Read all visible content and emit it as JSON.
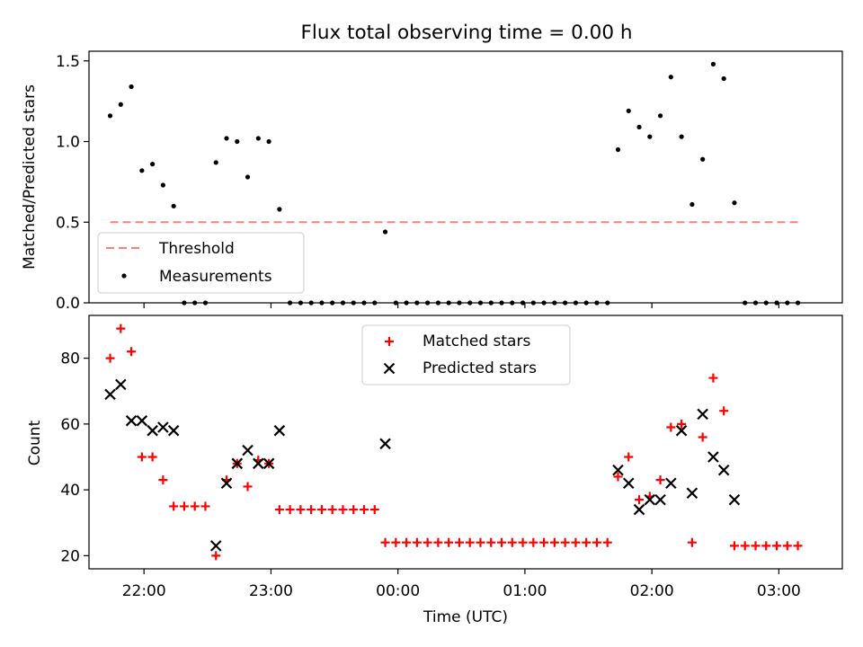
{
  "chart_data": [
    {
      "type": "scatter",
      "title": "Flux total observing time = 0.00 h",
      "ylabel": "Matched/Predicted stars",
      "ylim": [
        0,
        1.56
      ],
      "yticks": [
        "0.0",
        "0.5",
        "1.0",
        "1.5"
      ],
      "grid": false,
      "legend": "lower-left",
      "x_time_range": [
        "21:34",
        "03:30"
      ],
      "threshold": {
        "name": "Threshold",
        "value": 0.5,
        "x_start": "21:44",
        "x_end": "03:09",
        "color": "#ff7f7f",
        "style": "dashed"
      },
      "series": [
        {
          "name": "Measurements",
          "color": "#000000",
          "marker": "dot",
          "points": [
            [
              "21:44",
              1.16
            ],
            [
              "21:49",
              1.23
            ],
            [
              "21:54",
              1.34
            ],
            [
              "21:59",
              0.82
            ],
            [
              "22:04",
              0.86
            ],
            [
              "22:09",
              0.73
            ],
            [
              "22:14",
              0.6
            ],
            [
              "22:19",
              0.0
            ],
            [
              "22:24",
              0.0
            ],
            [
              "22:29",
              0.0
            ],
            [
              "22:34",
              0.87
            ],
            [
              "22:39",
              1.02
            ],
            [
              "22:44",
              1.0
            ],
            [
              "22:49",
              0.78
            ],
            [
              "22:54",
              1.02
            ],
            [
              "22:59",
              1.0
            ],
            [
              "23:04",
              0.58
            ],
            [
              "23:09",
              0.0
            ],
            [
              "23:14",
              0.0
            ],
            [
              "23:19",
              0.0
            ],
            [
              "23:24",
              0.0
            ],
            [
              "23:29",
              0.0
            ],
            [
              "23:34",
              0.0
            ],
            [
              "23:39",
              0.0
            ],
            [
              "23:44",
              0.0
            ],
            [
              "23:49",
              0.0
            ],
            [
              "23:54",
              0.44
            ],
            [
              "23:59",
              0.0
            ],
            [
              "00:04",
              0.0
            ],
            [
              "00:09",
              0.0
            ],
            [
              "00:14",
              0.0
            ],
            [
              "00:19",
              0.0
            ],
            [
              "00:24",
              0.0
            ],
            [
              "00:29",
              0.0
            ],
            [
              "00:34",
              0.0
            ],
            [
              "00:39",
              0.0
            ],
            [
              "00:44",
              0.0
            ],
            [
              "00:49",
              0.0
            ],
            [
              "00:54",
              0.0
            ],
            [
              "00:59",
              0.0
            ],
            [
              "01:04",
              0.0
            ],
            [
              "01:09",
              0.0
            ],
            [
              "01:14",
              0.0
            ],
            [
              "01:19",
              0.0
            ],
            [
              "01:24",
              0.0
            ],
            [
              "01:29",
              0.0
            ],
            [
              "01:34",
              0.0
            ],
            [
              "01:39",
              0.0
            ],
            [
              "01:44",
              0.95
            ],
            [
              "01:49",
              1.19
            ],
            [
              "01:54",
              1.09
            ],
            [
              "01:59",
              1.03
            ],
            [
              "02:04",
              1.16
            ],
            [
              "02:09",
              1.4
            ],
            [
              "02:14",
              1.03
            ],
            [
              "02:19",
              0.61
            ],
            [
              "02:24",
              0.89
            ],
            [
              "02:29",
              1.48
            ],
            [
              "02:34",
              1.39
            ],
            [
              "02:39",
              0.62
            ],
            [
              "02:44",
              0.0
            ],
            [
              "02:49",
              0.0
            ],
            [
              "02:54",
              0.0
            ],
            [
              "02:59",
              0.0
            ],
            [
              "03:04",
              0.0
            ],
            [
              "03:09",
              0.0
            ]
          ]
        }
      ]
    },
    {
      "type": "scatter",
      "xlabel": "Time (UTC)",
      "ylabel": "Count",
      "ylim": [
        16,
        93
      ],
      "yticks": [
        "20",
        "40",
        "60",
        "80"
      ],
      "xticks": [
        "22:00",
        "23:00",
        "00:00",
        "01:00",
        "02:00",
        "03:00"
      ],
      "x_time_range": [
        "21:34",
        "03:30"
      ],
      "grid": false,
      "legend": "top-center",
      "series": [
        {
          "name": "Matched stars",
          "color": "#ff0000",
          "marker": "plus",
          "points": [
            [
              "21:44",
              80
            ],
            [
              "21:49",
              89
            ],
            [
              "21:54",
              82
            ],
            [
              "21:59",
              50
            ],
            [
              "22:04",
              50
            ],
            [
              "22:09",
              43
            ],
            [
              "22:14",
              35
            ],
            [
              "22:19",
              35
            ],
            [
              "22:24",
              35
            ],
            [
              "22:29",
              35
            ],
            [
              "22:34",
              20
            ],
            [
              "22:39",
              43
            ],
            [
              "22:44",
              48
            ],
            [
              "22:49",
              41
            ],
            [
              "22:54",
              49
            ],
            [
              "22:59",
              48
            ],
            [
              "23:04",
              34
            ],
            [
              "23:09",
              34
            ],
            [
              "23:14",
              34
            ],
            [
              "23:19",
              34
            ],
            [
              "23:24",
              34
            ],
            [
              "23:29",
              34
            ],
            [
              "23:34",
              34
            ],
            [
              "23:39",
              34
            ],
            [
              "23:44",
              34
            ],
            [
              "23:49",
              34
            ],
            [
              "23:54",
              24
            ],
            [
              "23:59",
              24
            ],
            [
              "00:04",
              24
            ],
            [
              "00:09",
              24
            ],
            [
              "00:14",
              24
            ],
            [
              "00:19",
              24
            ],
            [
              "00:24",
              24
            ],
            [
              "00:29",
              24
            ],
            [
              "00:34",
              24
            ],
            [
              "00:39",
              24
            ],
            [
              "00:44",
              24
            ],
            [
              "00:49",
              24
            ],
            [
              "00:54",
              24
            ],
            [
              "00:59",
              24
            ],
            [
              "01:04",
              24
            ],
            [
              "01:09",
              24
            ],
            [
              "01:14",
              24
            ],
            [
              "01:19",
              24
            ],
            [
              "01:24",
              24
            ],
            [
              "01:29",
              24
            ],
            [
              "01:34",
              24
            ],
            [
              "01:39",
              24
            ],
            [
              "01:44",
              44
            ],
            [
              "01:49",
              50
            ],
            [
              "01:54",
              37
            ],
            [
              "01:59",
              38
            ],
            [
              "02:04",
              43
            ],
            [
              "02:09",
              59
            ],
            [
              "02:14",
              60
            ],
            [
              "02:19",
              24
            ],
            [
              "02:24",
              56
            ],
            [
              "02:29",
              74
            ],
            [
              "02:34",
              64
            ],
            [
              "02:39",
              23
            ],
            [
              "02:44",
              23
            ],
            [
              "02:49",
              23
            ],
            [
              "02:54",
              23
            ],
            [
              "02:59",
              23
            ],
            [
              "03:04",
              23
            ],
            [
              "03:09",
              23
            ]
          ]
        },
        {
          "name": "Predicted stars",
          "color": "#000000",
          "marker": "x",
          "points": [
            [
              "21:44",
              69
            ],
            [
              "21:49",
              72
            ],
            [
              "21:54",
              61
            ],
            [
              "21:59",
              61
            ],
            [
              "22:04",
              58
            ],
            [
              "22:09",
              59
            ],
            [
              "22:14",
              58
            ],
            [
              "22:34",
              23
            ],
            [
              "22:39",
              42
            ],
            [
              "22:44",
              48
            ],
            [
              "22:49",
              52
            ],
            [
              "22:54",
              48
            ],
            [
              "22:59",
              48
            ],
            [
              "23:04",
              58
            ],
            [
              "23:54",
              54
            ],
            [
              "01:44",
              46
            ],
            [
              "01:49",
              42
            ],
            [
              "01:54",
              34
            ],
            [
              "01:59",
              37
            ],
            [
              "02:04",
              37
            ],
            [
              "02:09",
              42
            ],
            [
              "02:14",
              58
            ],
            [
              "02:19",
              39
            ],
            [
              "02:24",
              63
            ],
            [
              "02:29",
              50
            ],
            [
              "02:34",
              46
            ],
            [
              "02:39",
              37
            ]
          ]
        }
      ]
    }
  ]
}
